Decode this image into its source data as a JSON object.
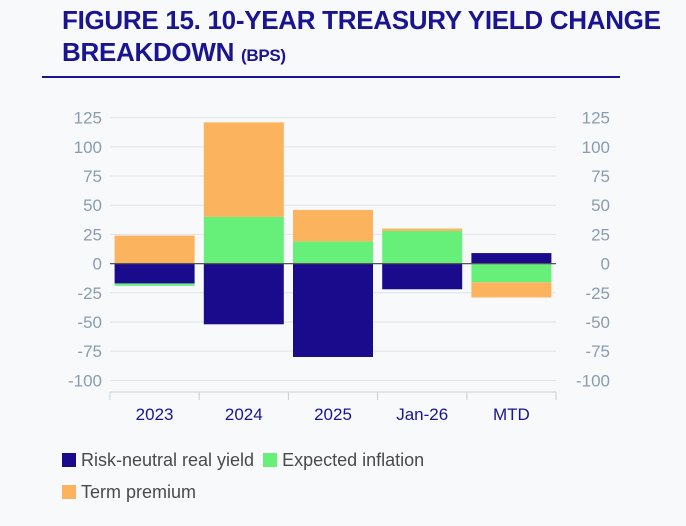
{
  "figure": {
    "title": "FIGURE 15. 10-YEAR TREASURY YIELD CHANGE BREAKDOWN",
    "unit": "(BPS)"
  },
  "chart_data": {
    "type": "bar",
    "stacked": true,
    "categories": [
      "2023",
      "2024",
      "2025",
      "Jan-26",
      "MTD"
    ],
    "series": [
      {
        "name": "Risk-neutral real yield",
        "color": "#1a0a8c",
        "values": [
          -17,
          -52,
          -80,
          -22,
          9
        ]
      },
      {
        "name": "Expected inflation",
        "color": "#66f07a",
        "values": [
          -2,
          40,
          19,
          28,
          -16
        ]
      },
      {
        "name": "Term premium",
        "color": "#fbb35e",
        "values": [
          24,
          81,
          27,
          2,
          -13
        ]
      }
    ],
    "ylim": [
      -110,
      135
    ],
    "yticks": [
      125,
      100,
      75,
      50,
      25,
      0,
      -25,
      -50,
      -75,
      -100
    ],
    "ytick_labels": [
      "125",
      "100",
      "75",
      "50",
      "25",
      "0",
      "-25",
      "-50",
      "-75",
      "-100"
    ],
    "xlabel": "",
    "ylabel": "",
    "grid": true,
    "legend": "bottom"
  }
}
